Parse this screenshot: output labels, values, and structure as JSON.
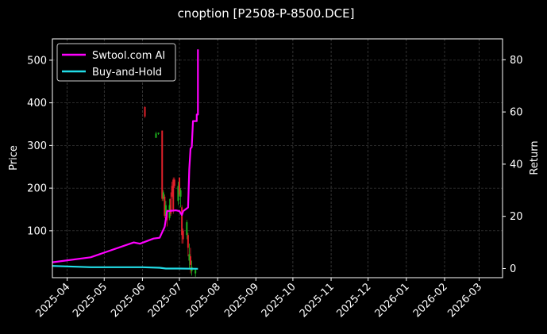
{
  "chart_data": {
    "type": "line",
    "title": "cnoption [P2508-P-8500.DCE]",
    "ylabel_left": "Price",
    "ylabel_right": "Return",
    "x_axis": {
      "type": "date",
      "range": [
        "2025-03-20",
        "2026-03-20"
      ],
      "tick_labels": [
        "2025-04",
        "2025-05",
        "2025-06",
        "2025-07",
        "2025-08",
        "2025-09",
        "2025-10",
        "2025-11",
        "2025-12",
        "2026-01",
        "2026-02",
        "2026-03"
      ],
      "tick_dates": [
        "2025-04-01",
        "2025-05-01",
        "2025-06-01",
        "2025-07-01",
        "2025-08-01",
        "2025-09-01",
        "2025-10-01",
        "2025-11-01",
        "2025-12-01",
        "2026-01-01",
        "2026-02-01",
        "2026-03-01"
      ]
    },
    "y_left": {
      "range": [
        -10,
        550
      ],
      "ticks": [
        100,
        200,
        300,
        400,
        500
      ]
    },
    "y_right": {
      "range": [
        -3.5,
        88
      ],
      "ticks": [
        0,
        20,
        40,
        60,
        80
      ]
    },
    "grid": true,
    "legend_position": "top-left",
    "colors": {
      "background": "#000000",
      "axes": "#ffffff",
      "grid": "#555555",
      "up_candle": "#1db31d",
      "down_candle": "#e0202a"
    },
    "series": [
      {
        "name": "Swtool.com AI",
        "axis": "right",
        "color": "#ff00ff",
        "x": [
          "2025-03-20",
          "2025-04-20",
          "2025-05-25",
          "2025-05-30",
          "2025-06-10",
          "2025-06-15",
          "2025-06-19",
          "2025-06-21",
          "2025-06-28",
          "2025-07-01",
          "2025-07-03",
          "2025-07-04",
          "2025-07-08",
          "2025-07-09",
          "2025-07-10",
          "2025-07-11",
          "2025-07-12",
          "2025-07-15",
          "2025-07-15",
          "2025-07-16",
          "2025-07-16",
          "2025-07-16"
        ],
        "y": [
          2.4,
          4.3,
          10.0,
          9.5,
          11.5,
          11.8,
          16.0,
          22.0,
          22.3,
          22.0,
          20.5,
          22.0,
          23.4,
          38.0,
          46.0,
          46.5,
          56.5,
          56.5,
          59.0,
          59.0,
          70.0,
          84.0
        ]
      },
      {
        "name": "Buy-and-Hold",
        "axis": "right",
        "color": "#22dde8",
        "x": [
          "2025-03-20",
          "2025-04-20",
          "2025-06-01",
          "2025-06-15",
          "2025-06-20",
          "2025-07-01",
          "2025-07-16"
        ],
        "y": [
          1.0,
          0.5,
          0.5,
          0.3,
          0.0,
          0.0,
          -0.1
        ]
      }
    ],
    "candles": [
      {
        "date": "2025-06-03",
        "open": 390,
        "close": 368,
        "high": 392,
        "low": 365
      },
      {
        "date": "2025-06-12",
        "open": 318,
        "close": 328,
        "high": 332,
        "low": 318
      },
      {
        "date": "2025-06-14",
        "open": 327,
        "close": 330,
        "high": 330,
        "low": 325
      },
      {
        "date": "2025-06-17",
        "open": 335,
        "close": 175,
        "high": 335,
        "low": 170
      },
      {
        "date": "2025-06-18",
        "open": 175,
        "close": 190,
        "high": 195,
        "low": 170
      },
      {
        "date": "2025-06-19",
        "open": 180,
        "close": 135,
        "high": 185,
        "low": 130
      },
      {
        "date": "2025-06-20",
        "open": 135,
        "close": 160,
        "high": 170,
        "low": 120
      },
      {
        "date": "2025-06-21",
        "open": 145,
        "close": 125,
        "high": 150,
        "low": 110
      },
      {
        "date": "2025-06-23",
        "open": 130,
        "close": 160,
        "high": 175,
        "low": 125
      },
      {
        "date": "2025-06-24",
        "open": 175,
        "close": 140,
        "high": 190,
        "low": 135
      },
      {
        "date": "2025-06-25",
        "open": 205,
        "close": 180,
        "high": 215,
        "low": 175
      },
      {
        "date": "2025-06-26",
        "open": 220,
        "close": 150,
        "high": 225,
        "low": 140
      },
      {
        "date": "2025-06-27",
        "open": 220,
        "close": 205,
        "high": 225,
        "low": 200
      },
      {
        "date": "2025-06-30",
        "open": 170,
        "close": 205,
        "high": 215,
        "low": 160
      },
      {
        "date": "2025-07-01",
        "open": 225,
        "close": 185,
        "high": 225,
        "low": 180
      },
      {
        "date": "2025-07-02",
        "open": 180,
        "close": 195,
        "high": 200,
        "low": 155
      },
      {
        "date": "2025-07-03",
        "open": 155,
        "close": 90,
        "high": 160,
        "low": 70
      },
      {
        "date": "2025-07-04",
        "open": 100,
        "close": 80,
        "high": 105,
        "low": 70
      },
      {
        "date": "2025-07-07",
        "open": 90,
        "close": 120,
        "high": 125,
        "low": 80
      },
      {
        "date": "2025-07-08",
        "open": 90,
        "close": 60,
        "high": 95,
        "low": 40
      },
      {
        "date": "2025-07-09",
        "open": 30,
        "close": 45,
        "high": 70,
        "low": 10
      },
      {
        "date": "2025-07-10",
        "open": 40,
        "close": 20,
        "high": 60,
        "low": 0
      },
      {
        "date": "2025-07-11",
        "open": 5,
        "close": 15,
        "high": 30,
        "low": -5
      },
      {
        "date": "2025-07-14",
        "open": 0,
        "close": 8,
        "high": 12,
        "low": -8
      }
    ]
  }
}
